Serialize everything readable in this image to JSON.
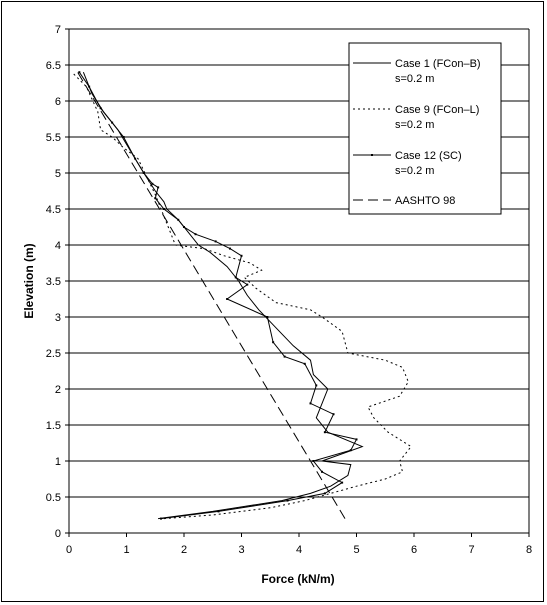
{
  "chart_data": {
    "type": "line",
    "title": "",
    "xlabel": "Force (kN/m)",
    "ylabel": "Elevation (m)",
    "xlim": [
      0,
      8
    ],
    "ylim": [
      0,
      7
    ],
    "xticks": [
      "0",
      "1",
      "2",
      "3",
      "4",
      "5",
      "6",
      "7",
      "8"
    ],
    "yticks": [
      "0",
      "0.5",
      "1",
      "1.5",
      "2",
      "2.5",
      "3",
      "3.5",
      "4",
      "4.5",
      "5",
      "5.5",
      "6",
      "6.5",
      "7"
    ],
    "grid": "horizontal",
    "legend_position": "top-right",
    "series": [
      {
        "name": "Case 1 (FCon–B)\ns=0.2 m",
        "style": "solid",
        "color": "#000000",
        "x": [
          1.55,
          2.5,
          3.7,
          4.2,
          4.55,
          4.85,
          4.9,
          4.4,
          5.1,
          4.5,
          4.3,
          4.5,
          4.25,
          4.2,
          3.9,
          3.6,
          3.3,
          3.1,
          2.95,
          2.75,
          2.45,
          2.25,
          2.05,
          1.9,
          1.7,
          1.65,
          1.5,
          1.3,
          1.15,
          1.0,
          0.85,
          0.6,
          0.4,
          0.25
        ],
        "y": [
          0.2,
          0.3,
          0.45,
          0.55,
          0.65,
          0.8,
          0.95,
          1.0,
          1.2,
          1.4,
          1.6,
          2.0,
          2.2,
          2.4,
          2.6,
          2.85,
          3.1,
          3.3,
          3.5,
          3.7,
          3.9,
          4.0,
          4.2,
          4.35,
          4.5,
          4.6,
          4.75,
          5.0,
          5.2,
          5.4,
          5.6,
          5.85,
          6.1,
          6.4
        ]
      },
      {
        "name": "Case 9 (FCon–L)\ns=0.2 m",
        "style": "dotted",
        "color": "#000000",
        "x": [
          1.65,
          2.5,
          3.5,
          4.1,
          4.55,
          5.0,
          5.5,
          5.8,
          5.75,
          5.95,
          5.55,
          5.3,
          5.2,
          5.75,
          5.9,
          5.8,
          5.5,
          4.85,
          4.75,
          4.4,
          4.2,
          3.6,
          3.25,
          3.05,
          3.35,
          3.15,
          2.7,
          2.35,
          1.85,
          1.65,
          1.5,
          1.35,
          1.2,
          0.95,
          0.75,
          0.55,
          0.5,
          0.3,
          0.05
        ],
        "y": [
          0.2,
          0.25,
          0.35,
          0.45,
          0.55,
          0.65,
          0.75,
          0.85,
          1.0,
          1.2,
          1.4,
          1.6,
          1.75,
          1.9,
          2.1,
          2.3,
          2.4,
          2.5,
          2.8,
          3.0,
          3.1,
          3.2,
          3.4,
          3.55,
          3.65,
          3.75,
          3.85,
          3.95,
          4.0,
          4.4,
          4.7,
          4.95,
          5.2,
          5.35,
          5.5,
          5.6,
          5.85,
          6.2,
          6.4
        ]
      },
      {
        "name": "Case 12 (SC)\ns=0.2 m",
        "style": "solid-markers",
        "color": "#000000",
        "x": [
          1.6,
          2.6,
          3.8,
          4.45,
          4.75,
          4.4,
          4.25,
          4.9,
          5.0,
          4.45,
          4.6,
          4.2,
          4.3,
          4.1,
          3.75,
          3.55,
          3.45,
          2.75,
          3.1,
          2.9,
          3.0,
          2.8,
          2.55,
          2.2,
          2.0,
          1.9,
          1.65,
          1.5,
          1.55,
          1.45,
          1.3,
          1.15,
          0.95,
          0.75,
          0.55,
          0.35,
          0.18
        ],
        "y": [
          0.2,
          0.3,
          0.45,
          0.55,
          0.7,
          0.85,
          1.0,
          1.15,
          1.3,
          1.4,
          1.65,
          1.8,
          2.05,
          2.35,
          2.45,
          2.65,
          3.0,
          3.25,
          3.45,
          3.55,
          3.85,
          3.95,
          4.05,
          4.15,
          4.25,
          4.35,
          4.5,
          4.65,
          4.8,
          4.85,
          5.0,
          5.2,
          5.5,
          5.7,
          5.9,
          6.2,
          6.4
        ]
      },
      {
        "name": "AASHTO 98",
        "style": "dashed",
        "color": "#000000",
        "x": [
          4.8,
          0.15
        ],
        "y": [
          0.2,
          6.4
        ]
      }
    ]
  }
}
